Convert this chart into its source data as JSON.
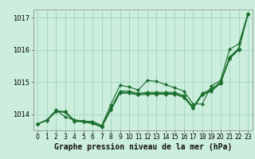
{
  "title": "Graphe pression niveau de la mer (hPa)",
  "bg_color": "#cceedd",
  "grid_color": "#99ccbb",
  "line_color": "#1a6e2e",
  "ylim": [
    1013.5,
    1017.25
  ],
  "xlim": [
    -0.5,
    23.5
  ],
  "yticks": [
    1014,
    1015,
    1016,
    1017
  ],
  "xticks": [
    0,
    1,
    2,
    3,
    4,
    5,
    6,
    7,
    8,
    9,
    10,
    11,
    12,
    13,
    14,
    15,
    16,
    17,
    18,
    19,
    20,
    21,
    22,
    23
  ],
  "s1": [
    1013.7,
    1013.82,
    1014.13,
    1013.92,
    1013.82,
    1013.78,
    1013.78,
    1013.65,
    1014.3,
    1014.9,
    1014.85,
    1014.75,
    1015.05,
    1015.02,
    1014.92,
    1014.82,
    1014.72,
    1014.32,
    1014.32,
    1014.88,
    1015.05,
    1016.02,
    1016.18,
    1017.12
  ],
  "s2": [
    1013.7,
    1013.82,
    1014.1,
    1014.08,
    1013.82,
    1013.8,
    1013.75,
    1013.65,
    1014.18,
    1014.72,
    1014.72,
    1014.65,
    1014.68,
    1014.68,
    1014.68,
    1014.68,
    1014.58,
    1014.22,
    1014.65,
    1014.78,
    1015.0,
    1015.78,
    1016.05,
    1017.1
  ],
  "s3": [
    1013.7,
    1013.82,
    1014.1,
    1014.08,
    1013.8,
    1013.78,
    1013.73,
    1013.62,
    1014.15,
    1014.68,
    1014.68,
    1014.62,
    1014.65,
    1014.65,
    1014.65,
    1014.65,
    1014.55,
    1014.2,
    1014.62,
    1014.75,
    1014.98,
    1015.75,
    1016.02,
    1017.1
  ],
  "s4": [
    1013.7,
    1013.8,
    1014.08,
    1014.06,
    1013.78,
    1013.76,
    1013.71,
    1013.6,
    1014.13,
    1014.65,
    1014.65,
    1014.6,
    1014.62,
    1014.62,
    1014.62,
    1014.62,
    1014.52,
    1014.18,
    1014.6,
    1014.72,
    1014.95,
    1015.72,
    1016.0,
    1017.1
  ],
  "title_fontsize": 7,
  "tick_fontsize": 5.5
}
